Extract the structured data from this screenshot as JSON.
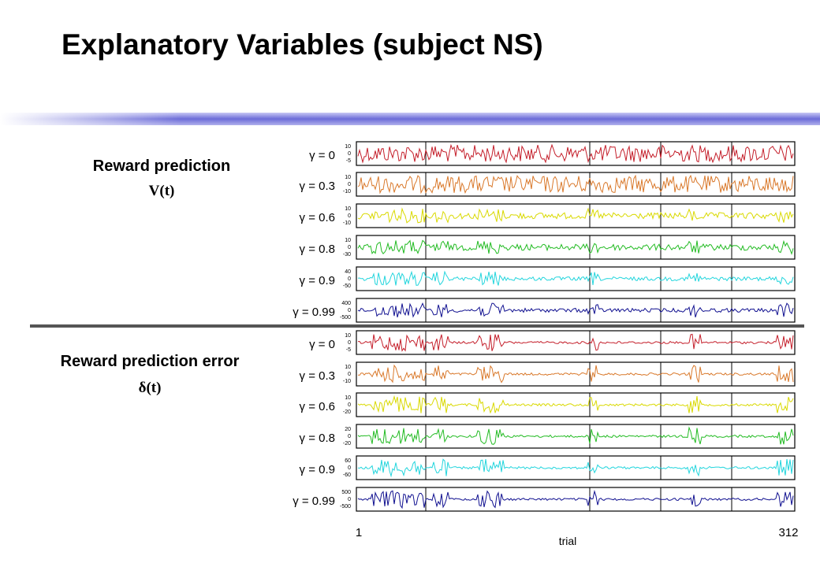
{
  "slide": {
    "title": "Explanatory Variables (subject NS)"
  },
  "sections": [
    {
      "heading": "Reward prediction",
      "variable": "V(t)"
    },
    {
      "heading": "Reward prediction error",
      "variable": "δ(t)"
    }
  ],
  "trace_rows": [
    {
      "label": "γ = 0",
      "color": "#c41e2a",
      "ticks": [
        "10",
        "0",
        "-5"
      ],
      "group": "V"
    },
    {
      "label": "γ = 0.3",
      "color": "#d9782a",
      "ticks": [
        "10",
        "0",
        "-10"
      ],
      "group": "V"
    },
    {
      "label": "γ = 0.6",
      "color": "#d9d900",
      "ticks": [
        "10",
        "0",
        "-10"
      ],
      "group": "V"
    },
    {
      "label": "γ = 0.8",
      "color": "#22bb22",
      "ticks": [
        "10",
        "0",
        "-30"
      ],
      "group": "V"
    },
    {
      "label": "γ = 0.9",
      "color": "#22d5dd",
      "ticks": [
        "40",
        "0",
        "-50"
      ],
      "group": "V"
    },
    {
      "label": "γ = 0.99",
      "color": "#101090",
      "ticks": [
        "400",
        "0",
        "-500"
      ],
      "group": "V"
    },
    {
      "label": "γ = 0",
      "color": "#c41e2a",
      "ticks": [
        "10",
        "0",
        "-5"
      ],
      "group": "delta"
    },
    {
      "label": "γ = 0.3",
      "color": "#d9782a",
      "ticks": [
        "10",
        "0",
        "-10"
      ],
      "group": "delta"
    },
    {
      "label": "γ = 0.6",
      "color": "#d9d900",
      "ticks": [
        "10",
        "0",
        "-20"
      ],
      "group": "delta"
    },
    {
      "label": "γ = 0.8",
      "color": "#22bb22",
      "ticks": [
        "20",
        "0",
        "-20"
      ],
      "group": "delta"
    },
    {
      "label": "γ = 0.9",
      "color": "#22d5dd",
      "ticks": [
        "60",
        "0",
        "-60"
      ],
      "group": "delta"
    },
    {
      "label": "γ = 0.99",
      "color": "#101090",
      "ticks": [
        "500",
        "0",
        "-500"
      ],
      "group": "delta"
    }
  ],
  "x_axis": {
    "start": "1",
    "end": "312",
    "label": "trial"
  }
}
